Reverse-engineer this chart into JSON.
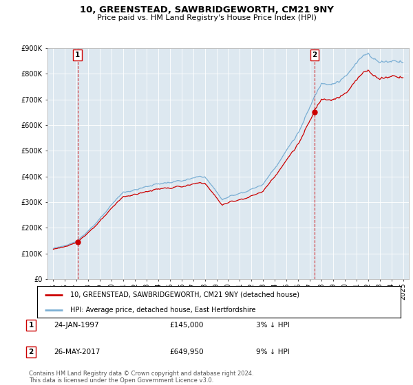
{
  "title1": "10, GREENSTEAD, SAWBRIDGEWORTH, CM21 9NY",
  "title2": "Price paid vs. HM Land Registry's House Price Index (HPI)",
  "legend_line1": "10, GREENSTEAD, SAWBRIDGEWORTH, CM21 9NY (detached house)",
  "legend_line2": "HPI: Average price, detached house, East Hertfordshire",
  "table": [
    {
      "label": "1",
      "date": "24-JAN-1997",
      "price": "£145,000",
      "hpi": "3% ↓ HPI"
    },
    {
      "label": "2",
      "date": "26-MAY-2017",
      "price": "£649,950",
      "hpi": "9% ↓ HPI"
    }
  ],
  "footnote": "Contains HM Land Registry data © Crown copyright and database right 2024.\nThis data is licensed under the Open Government Licence v3.0.",
  "sale1_year": 1997.07,
  "sale1_price": 145000,
  "sale2_year": 2017.4,
  "sale2_price": 649950,
  "hpi_color": "#7bafd4",
  "sold_color": "#cc0000",
  "marker_color": "#cc0000",
  "ylim_max": 900000,
  "xlim_start": 1994.5,
  "xlim_end": 2025.5,
  "plot_bg_color": "#dde8f0",
  "fig_bg_color": "#ffffff",
  "grid_color": "#ffffff"
}
